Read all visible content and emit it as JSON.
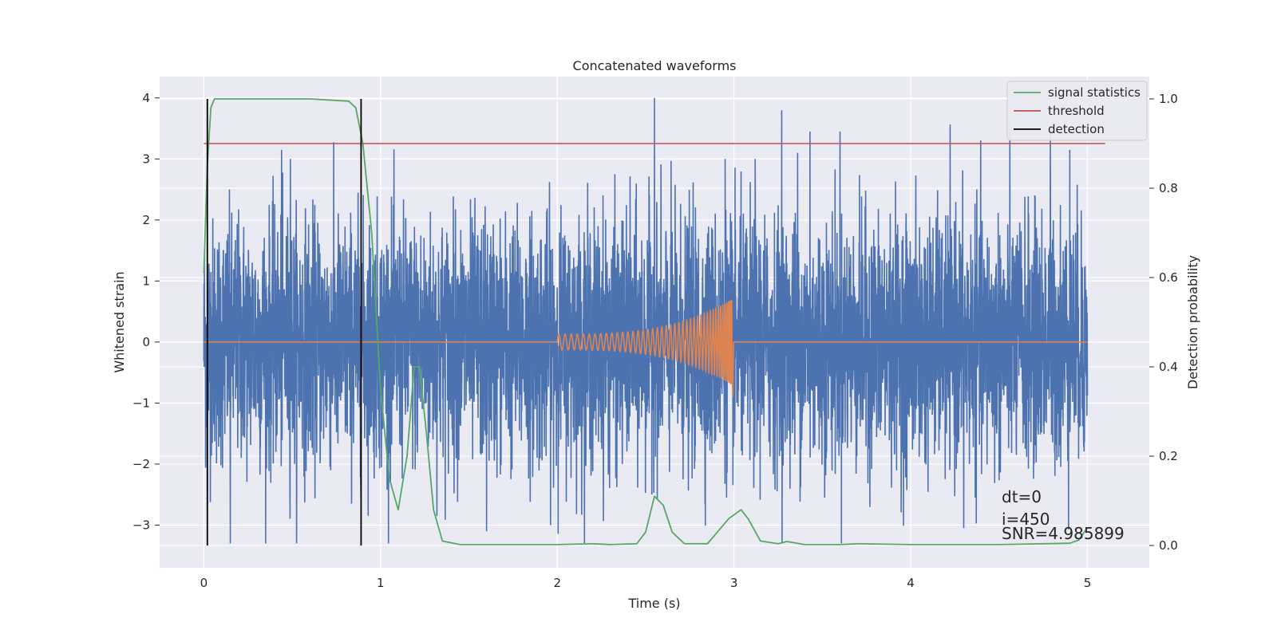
{
  "chart_data": {
    "type": "line",
    "title": "Concatenated waveforms",
    "xlabel": "Time (s)",
    "ylabel": "Whitened strain",
    "ylabel_right": "Detection probability",
    "xlim": [
      -0.25,
      5.35
    ],
    "ylim": [
      -3.7,
      4.35
    ],
    "ylim_right": [
      -0.05,
      1.05
    ],
    "x_ticks": [
      0,
      1,
      2,
      3,
      4,
      5
    ],
    "x_tick_labels": [
      "0",
      "1",
      "2",
      "3",
      "4",
      "5"
    ],
    "y_ticks": [
      -3,
      -2,
      -1,
      0,
      1,
      2,
      3,
      4
    ],
    "y_tick_labels": [
      "−3",
      "−2",
      "−1",
      "0",
      "1",
      "2",
      "3",
      "4"
    ],
    "y_right_ticks": [
      0.0,
      0.2,
      0.4,
      0.6,
      0.8,
      1.0
    ],
    "y_right_tick_labels": [
      "0.0",
      "0.2",
      "0.4",
      "0.6",
      "0.8",
      "1.0"
    ],
    "grid": true,
    "legend_position": "top-right",
    "legend": [
      {
        "label": "signal statistics",
        "color": "#55a868"
      },
      {
        "label": "threshold",
        "color": "#c44e52"
      },
      {
        "label": "detection",
        "color": "#000000"
      }
    ],
    "series": [
      {
        "kind": "noise",
        "axis": "left",
        "color": "#4c72b0",
        "x_range": [
          0,
          5
        ],
        "typical_range": [
          -2.2,
          2.4
        ],
        "peaks": [
          {
            "x": 2.55,
            "y": 4.0
          },
          {
            "x": 3.27,
            "y": 3.8
          },
          {
            "x": 3.43,
            "y": 3.45
          },
          {
            "x": 3.6,
            "y": 3.45
          },
          {
            "x": 4.79,
            "y": 3.45
          },
          {
            "x": 4.9,
            "y": 3.15
          },
          {
            "x": 0.44,
            "y": 3.15
          },
          {
            "x": 0.49,
            "y": 3.0
          },
          {
            "x": 3.12,
            "y": 3.0
          },
          {
            "x": 3.36,
            "y": 3.1
          },
          {
            "x": 2.95,
            "y": 3.0
          },
          {
            "x": 0.15,
            "y": -3.3
          },
          {
            "x": 1.6,
            "y": -3.1
          },
          {
            "x": 4.3,
            "y": -3.05
          },
          {
            "x": 0.02,
            "y": -2.7
          }
        ]
      },
      {
        "kind": "chirp",
        "axis": "left",
        "color": "#dd8452",
        "start": 2.0,
        "merger": 2.99,
        "end": 5.0,
        "peak_amplitude": 0.7
      },
      {
        "name": "signal statistics",
        "axis": "right",
        "color": "#55a868",
        "x": [
          0.0,
          0.02,
          0.04,
          0.06,
          0.1,
          0.3,
          0.6,
          0.82,
          0.86,
          0.9,
          0.95,
          1.0,
          1.05,
          1.1,
          1.15,
          1.19,
          1.22,
          1.26,
          1.3,
          1.35,
          1.45,
          2.0,
          2.2,
          2.3,
          2.45,
          2.5,
          2.55,
          2.6,
          2.65,
          2.72,
          2.85,
          2.97,
          3.04,
          3.08,
          3.15,
          3.25,
          3.3,
          3.4,
          3.6,
          3.7,
          4.0,
          4.5,
          4.9,
          4.95,
          5.0
        ],
        "y": [
          0.61,
          0.85,
          0.98,
          1.0,
          1.0,
          1.0,
          1.0,
          0.995,
          0.98,
          0.9,
          0.7,
          0.35,
          0.15,
          0.08,
          0.2,
          0.4,
          0.4,
          0.25,
          0.08,
          0.01,
          0.002,
          0.002,
          0.004,
          0.002,
          0.004,
          0.03,
          0.11,
          0.09,
          0.03,
          0.004,
          0.004,
          0.06,
          0.08,
          0.06,
          0.01,
          0.004,
          0.009,
          0.002,
          0.002,
          0.004,
          0.002,
          0.002,
          0.005,
          0.012,
          0.04
        ]
      },
      {
        "name": "threshold",
        "axis": "right",
        "color": "#c44e52",
        "x": [
          0.0,
          5.1
        ],
        "y": [
          0.9,
          0.9
        ]
      },
      {
        "name": "detection",
        "axis": "right",
        "color": "#000000",
        "x": [
          0.02,
          0.89
        ],
        "y_span": [
          0.0,
          1.0
        ]
      }
    ],
    "annotations": [
      "dt=0",
      "i=450",
      "SNR=4.985899"
    ]
  }
}
